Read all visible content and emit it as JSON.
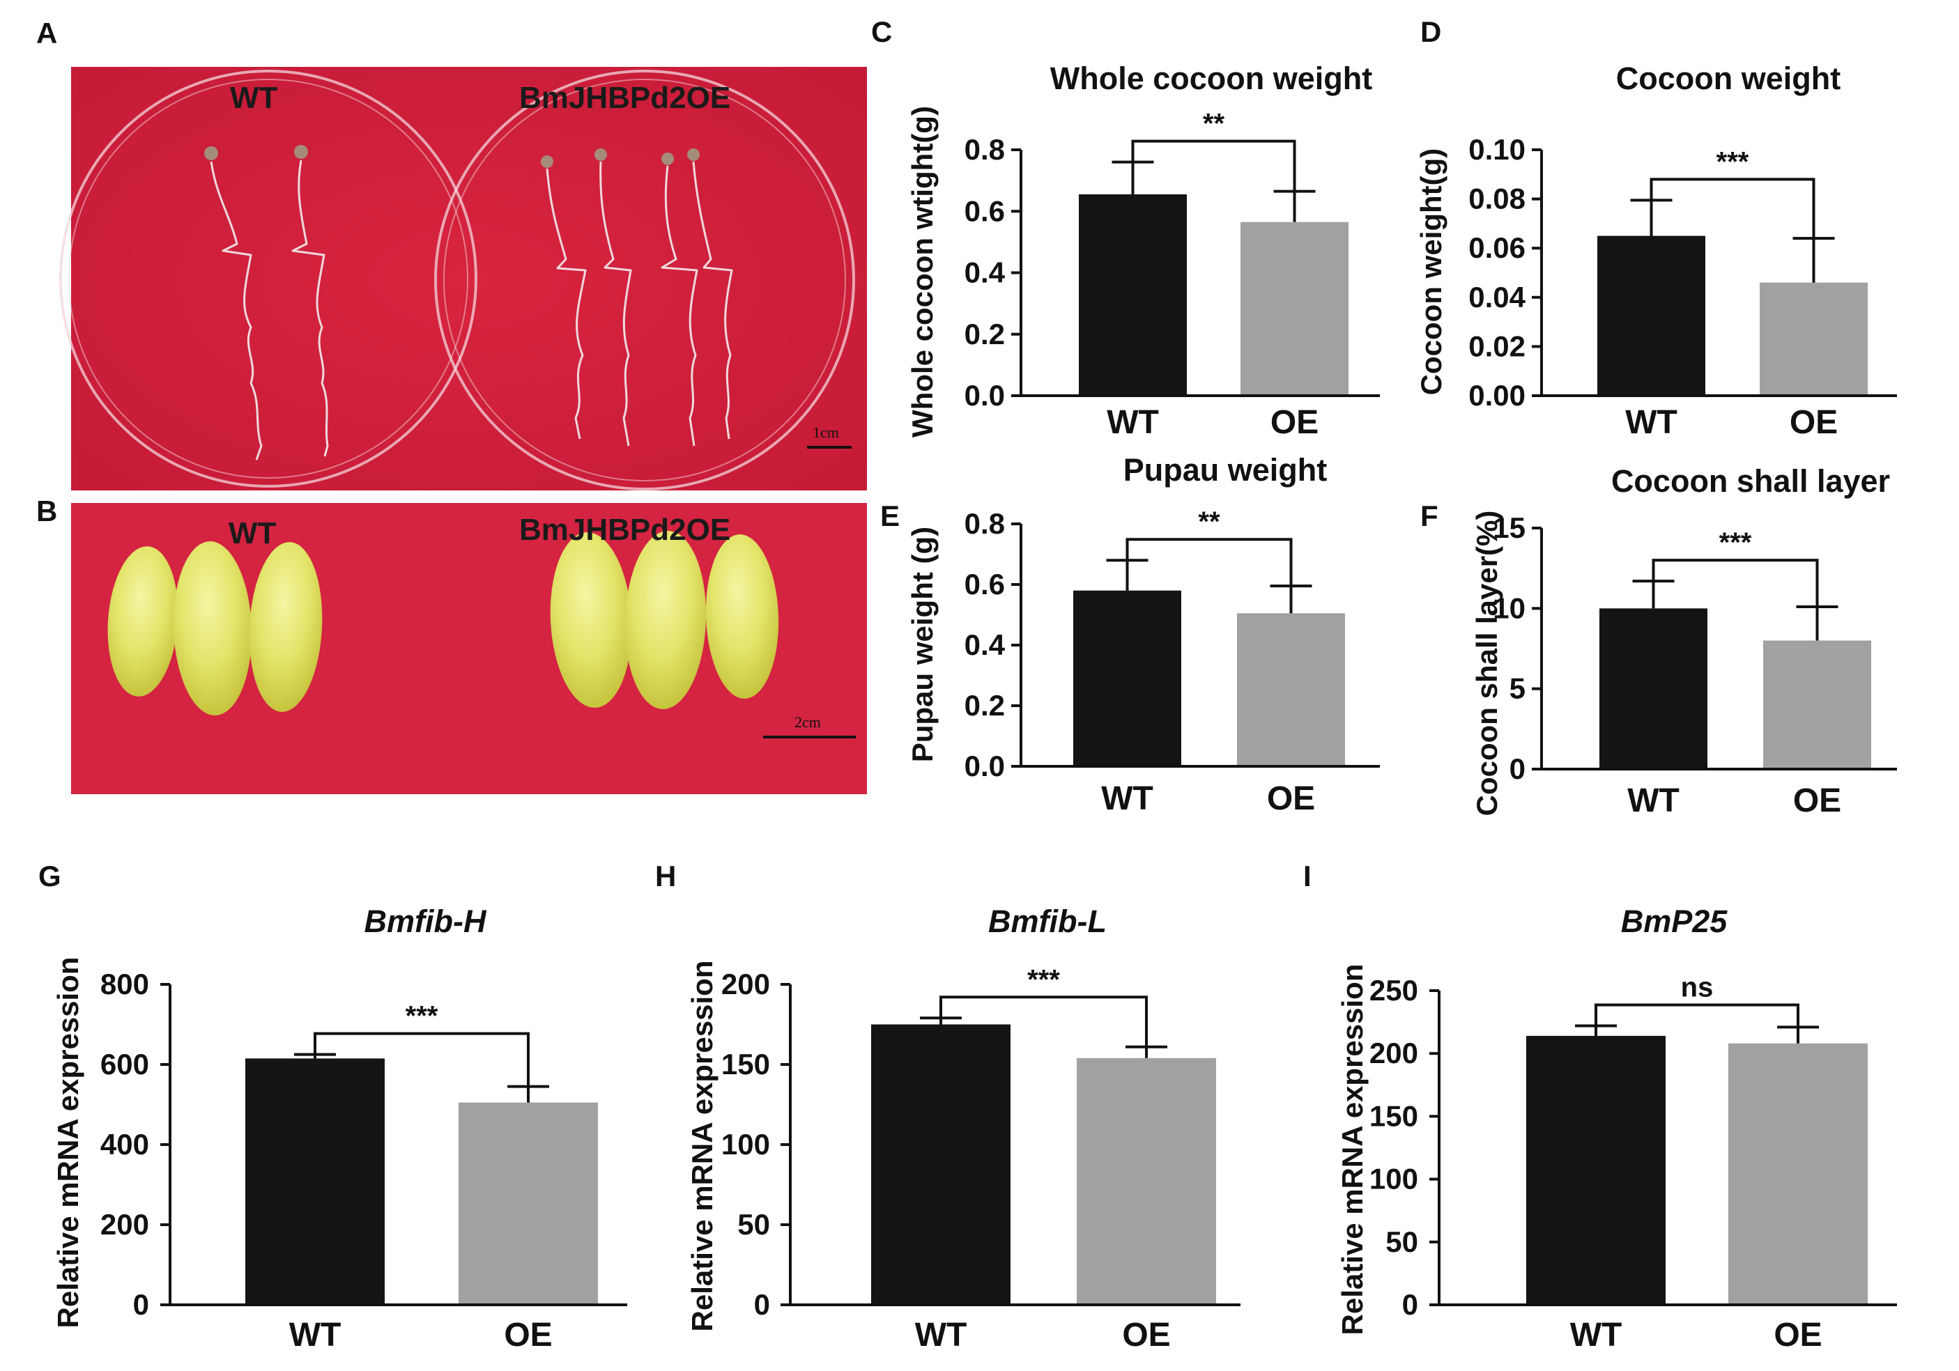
{
  "panels": {
    "A": {
      "letter": "A",
      "label_left": "WT",
      "label_right": "BmJHBPd2OE",
      "scale": "1cm"
    },
    "B": {
      "letter": "B",
      "label_left": "WT",
      "label_right": "BmJHBPd2OE",
      "scale": "2cm"
    }
  },
  "colors": {
    "wt_bar": "#141414",
    "oe_bar": "#a2a0a3",
    "photo_bg": "#d11f3d"
  },
  "chart_data": [
    {
      "id": "C",
      "letter": "C",
      "type": "bar",
      "title": "Whole cocoon weight",
      "title_italic": false,
      "ylabel": "Whole cocoon wtight(g)",
      "xlabel": "",
      "categories": [
        "WT",
        "OE"
      ],
      "values": [
        0.655,
        0.565
      ],
      "errors": [
        0.105,
        0.1
      ],
      "ylim": [
        0,
        0.8
      ],
      "ticks": [
        0.0,
        0.2,
        0.4,
        0.6,
        0.8
      ],
      "tick_labels": [
        "0.0",
        "0.2",
        "0.4",
        "0.6",
        "0.8"
      ],
      "significance": "**"
    },
    {
      "id": "D",
      "letter": "D",
      "type": "bar",
      "title": "Cocoon weight",
      "title_italic": false,
      "ylabel": "Cocoon weight(g)",
      "xlabel": "",
      "categories": [
        "WT",
        "OE"
      ],
      "values": [
        0.065,
        0.046
      ],
      "errors": [
        0.0145,
        0.018
      ],
      "ylim": [
        0,
        0.1
      ],
      "ticks": [
        0,
        0.02,
        0.04,
        0.06,
        0.08,
        0.1
      ],
      "tick_labels": [
        "0.00",
        "0.02",
        "0.04",
        "0.06",
        "0.08",
        "0.10"
      ],
      "significance": "***"
    },
    {
      "id": "E",
      "letter": "E",
      "type": "bar",
      "title": "Pupau weight",
      "title_italic": false,
      "ylabel": "Pupau weight (g)",
      "xlabel": "",
      "categories": [
        "WT",
        "OE"
      ],
      "values": [
        0.58,
        0.505
      ],
      "errors": [
        0.1,
        0.09
      ],
      "ylim": [
        0,
        0.8
      ],
      "ticks": [
        0.0,
        0.2,
        0.4,
        0.6,
        0.8
      ],
      "tick_labels": [
        "0.0",
        "0.2",
        "0.4",
        "0.6",
        "0.8"
      ],
      "significance": "**"
    },
    {
      "id": "F",
      "letter": "F",
      "type": "bar",
      "title": "Cocoon shall layer",
      "title_italic": false,
      "ylabel": "Cocoon shall layer(%)",
      "xlabel": "",
      "categories": [
        "WT",
        "OE"
      ],
      "values": [
        10.0,
        8.0
      ],
      "errors": [
        1.7,
        2.1
      ],
      "ylim": [
        0,
        15
      ],
      "ticks": [
        0,
        5,
        10,
        15
      ],
      "tick_labels": [
        "0",
        "5",
        "10",
        "15"
      ],
      "significance": "***"
    },
    {
      "id": "G",
      "letter": "G",
      "type": "bar",
      "title": "Bmfib-H",
      "title_italic": true,
      "ylabel": "Relative mRNA expression",
      "xlabel": "",
      "categories": [
        "WT",
        "OE"
      ],
      "values": [
        615,
        505
      ],
      "errors": [
        10,
        40
      ],
      "ylim": [
        0,
        800
      ],
      "ticks": [
        0,
        200,
        400,
        600,
        800
      ],
      "tick_labels": [
        "0",
        "200",
        "400",
        "600",
        "800"
      ],
      "significance": "***"
    },
    {
      "id": "H",
      "letter": "H",
      "type": "bar",
      "title": "Bmfib-L",
      "title_italic": true,
      "ylabel": "Relative mRNA expression",
      "xlabel": "",
      "categories": [
        "WT",
        "OE"
      ],
      "values": [
        175,
        154
      ],
      "errors": [
        4,
        7
      ],
      "ylim": [
        0,
        200
      ],
      "ticks": [
        0,
        50,
        100,
        150,
        200
      ],
      "tick_labels": [
        "0",
        "50",
        "100",
        "150",
        "200"
      ],
      "significance": "***"
    },
    {
      "id": "I",
      "letter": "I",
      "type": "bar",
      "title": "BmP25",
      "title_italic": true,
      "ylabel": "Relative mRNA expression",
      "xlabel": "",
      "categories": [
        "WT",
        "OE"
      ],
      "values": [
        214,
        208
      ],
      "errors": [
        8,
        13
      ],
      "ylim": [
        0,
        250
      ],
      "ticks": [
        0,
        50,
        100,
        150,
        200,
        250
      ],
      "tick_labels": [
        "0",
        "50",
        "100",
        "150",
        "200",
        "250"
      ],
      "significance": "ns"
    }
  ]
}
